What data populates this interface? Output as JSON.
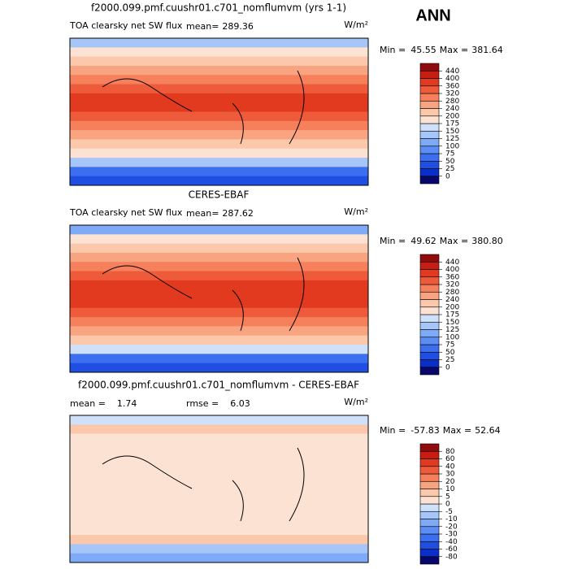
{
  "header": {
    "title": "ANN"
  },
  "colorbar_colors": [
    "#08086b",
    "#0a2ec8",
    "#1f4fe0",
    "#3b6ff0",
    "#5b8df5",
    "#7faaf7",
    "#a6c6fa",
    "#cfe0fb",
    "#fbe2d2",
    "#fcc8ac",
    "#f9a481",
    "#f5805b",
    "#ee5b3b",
    "#e23a1f",
    "#c61e12",
    "#8e0c0c"
  ],
  "panels": [
    {
      "title": "f2000.099.pmf.cuushr01.c701_nomflumvm (yrs 1-1)",
      "variable": "TOA clearsky net SW flux",
      "mean_label": "mean=",
      "mean": "289.36",
      "units": "W/m²",
      "min_label": "Min =",
      "min": "45.55",
      "max_label": "Max =",
      "max": "381.64",
      "levels": [
        0,
        25,
        50,
        75,
        100,
        125,
        150,
        175,
        200,
        240,
        280,
        320,
        360,
        400,
        440
      ]
    },
    {
      "title": "CERES-EBAF",
      "variable": "TOA clearsky net SW flux",
      "mean_label": "mean=",
      "mean": "287.62",
      "units": "W/m²",
      "min_label": "Min =",
      "min": "49.62",
      "max_label": "Max =",
      "max": "380.80",
      "levels": [
        0,
        25,
        50,
        75,
        100,
        125,
        150,
        175,
        200,
        240,
        280,
        320,
        360,
        400,
        440
      ]
    },
    {
      "title": "f2000.099.pmf.cuushr01.c701_nomflumvm - CERES-EBAF",
      "mean_label": "mean =",
      "mean": "1.74",
      "rmse_label": "rmse =",
      "rmse": "6.03",
      "units": "W/m²",
      "min_label": "Min =",
      "min": "-57.83",
      "max_label": "Max =",
      "max": "52.64",
      "levels": [
        -80,
        -60,
        -40,
        -30,
        -20,
        -10,
        -5,
        0,
        5,
        10,
        20,
        30,
        40,
        60,
        80
      ]
    }
  ]
}
